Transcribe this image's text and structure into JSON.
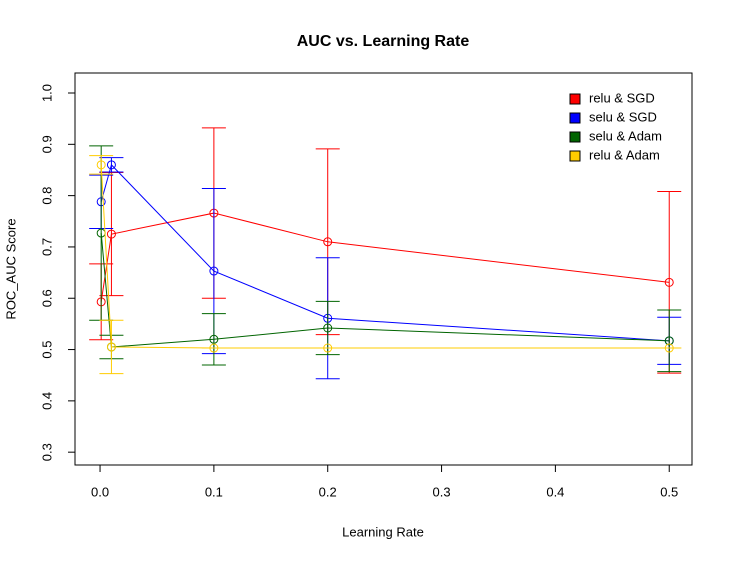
{
  "chart_data": {
    "type": "line",
    "title": "AUC vs. Learning Rate",
    "x_label": "Learning Rate",
    "y_label": "ROC_AUC Score",
    "x": [
      0.001,
      0.01,
      0.1,
      0.2,
      0.5
    ],
    "series": [
      {
        "name": "relu & SGD",
        "color": "#ff0000",
        "values": [
          0.593,
          0.725,
          0.766,
          0.71,
          0.631
        ],
        "errors": [
          0.074,
          0.12,
          0.166,
          0.181,
          0.177
        ]
      },
      {
        "name": "selu & SGD",
        "color": "#0000ff",
        "values": [
          0.788,
          0.86,
          0.653,
          0.561,
          0.517
        ],
        "errors": [
          0.052,
          0.014,
          0.161,
          0.118,
          0.046
        ]
      },
      {
        "name": "selu & Adam",
        "color": "#006400",
        "values": [
          0.727,
          0.505,
          0.52,
          0.542,
          0.517
        ],
        "errors": [
          0.17,
          0.023,
          0.05,
          0.052,
          0.06
        ]
      },
      {
        "name": "relu & Adam",
        "color": "#ffcc00",
        "values": [
          0.86,
          0.505,
          0.503,
          0.503,
          0.503
        ],
        "errors": [
          0.018,
          0.052,
          0,
          0,
          0
        ]
      }
    ],
    "xlim": [
      -0.022,
      0.52
    ],
    "ylim": [
      0.275,
      1.039
    ],
    "xticks": [
      {
        "value": 0,
        "label": "0.0"
      },
      0.1,
      0.2,
      0.3,
      0.4,
      0.5
    ],
    "yticks": [
      0.3,
      0.4,
      0.5,
      0.6,
      0.7,
      0.8,
      0.9,
      {
        "value": 1,
        "label": "1.0"
      }
    ],
    "legend": "top-right"
  }
}
